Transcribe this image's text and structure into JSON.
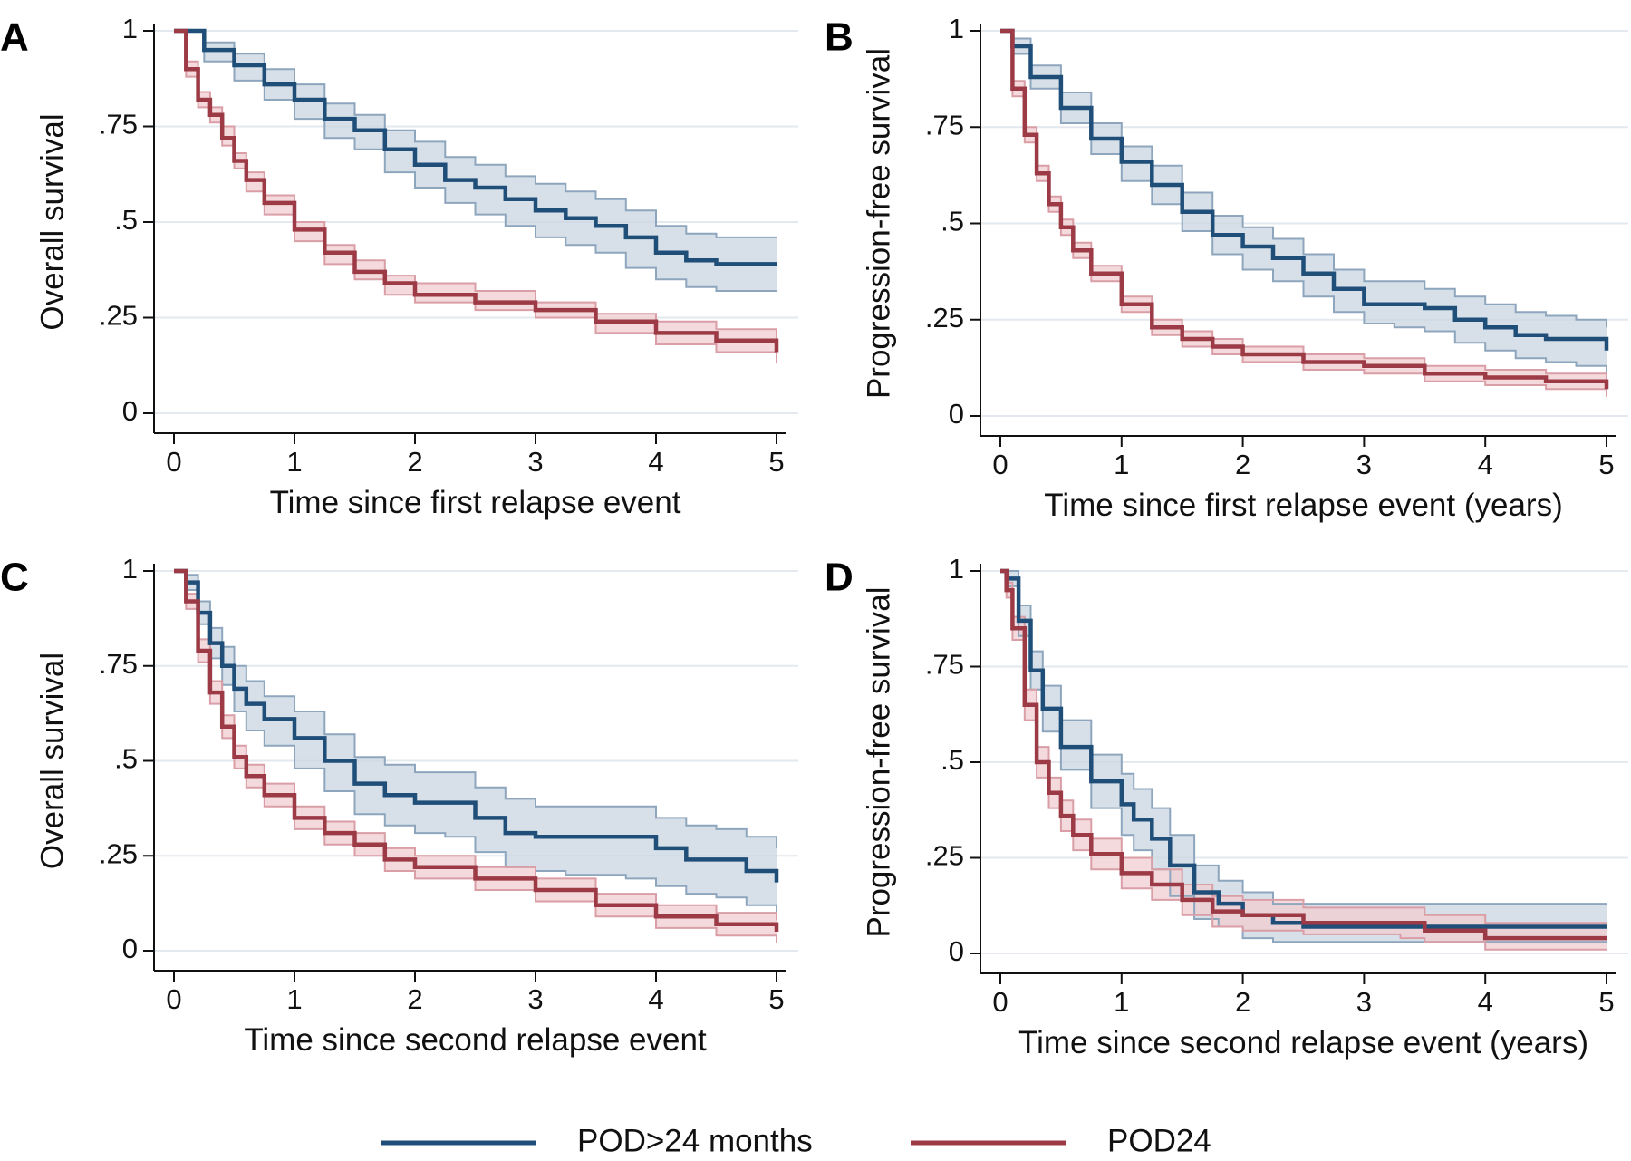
{
  "legend": {
    "placement": "bottom-center",
    "items": [
      {
        "label": "POD>24 months",
        "color": "#1f4e79"
      },
      {
        "label": "POD24",
        "color": "#9c3a46"
      }
    ]
  },
  "band_colors": {
    "POD>24 months": "#c9d5e1",
    "POD24": "#f0cdd0"
  },
  "chart_data": [
    {
      "panel": "A",
      "type": "line",
      "xlabel": "Time since first relapse event",
      "ylabel": "Overall survival",
      "xlim": [
        0,
        5
      ],
      "ylim": [
        0,
        1
      ],
      "xticks": [
        "0",
        "1",
        "2",
        "3",
        "4",
        "5"
      ],
      "yticks": [
        "0",
        ".25",
        ".5",
        ".75",
        "1"
      ],
      "grid": true,
      "series": [
        {
          "name": "POD>24 months",
          "x": [
            0,
            0.25,
            0.5,
            0.75,
            1,
            1.25,
            1.5,
            1.75,
            2,
            2.25,
            2.5,
            2.75,
            3,
            3.25,
            3.5,
            3.75,
            4,
            4.25,
            4.5,
            4.75,
            5
          ],
          "y": [
            1,
            0.95,
            0.91,
            0.86,
            0.82,
            0.77,
            0.74,
            0.69,
            0.65,
            0.61,
            0.59,
            0.56,
            0.53,
            0.51,
            0.49,
            0.46,
            0.42,
            0.4,
            0.39,
            0.39,
            0.39
          ],
          "lower": [
            1,
            0.92,
            0.87,
            0.82,
            0.77,
            0.72,
            0.69,
            0.63,
            0.59,
            0.55,
            0.52,
            0.49,
            0.46,
            0.44,
            0.42,
            0.38,
            0.35,
            0.33,
            0.32,
            0.32,
            0.32
          ],
          "upper": [
            1,
            0.97,
            0.94,
            0.9,
            0.86,
            0.81,
            0.78,
            0.74,
            0.71,
            0.67,
            0.65,
            0.62,
            0.6,
            0.58,
            0.56,
            0.53,
            0.49,
            0.47,
            0.46,
            0.46,
            0.46
          ]
        },
        {
          "name": "POD24",
          "x": [
            0,
            0.1,
            0.2,
            0.3,
            0.4,
            0.5,
            0.6,
            0.75,
            1,
            1.25,
            1.5,
            1.75,
            2,
            2.5,
            3,
            3.5,
            4,
            4.5,
            5
          ],
          "y": [
            1,
            0.9,
            0.82,
            0.78,
            0.72,
            0.66,
            0.61,
            0.55,
            0.48,
            0.42,
            0.37,
            0.34,
            0.31,
            0.29,
            0.27,
            0.24,
            0.21,
            0.19,
            0.16
          ],
          "lower": [
            1,
            0.88,
            0.8,
            0.76,
            0.7,
            0.64,
            0.58,
            0.52,
            0.45,
            0.39,
            0.35,
            0.31,
            0.29,
            0.27,
            0.25,
            0.21,
            0.18,
            0.16,
            0.13
          ],
          "upper": [
            1,
            0.92,
            0.84,
            0.8,
            0.75,
            0.68,
            0.63,
            0.57,
            0.5,
            0.44,
            0.4,
            0.36,
            0.34,
            0.32,
            0.29,
            0.26,
            0.24,
            0.22,
            0.19
          ]
        }
      ]
    },
    {
      "panel": "B",
      "type": "line",
      "xlabel": "Time since first relapse event (years)",
      "ylabel": "Progression-free survival",
      "xlim": [
        0,
        5
      ],
      "ylim": [
        0,
        1
      ],
      "xticks": [
        "0",
        "1",
        "2",
        "3",
        "4",
        "5"
      ],
      "yticks": [
        "0",
        ".25",
        ".5",
        ".75",
        "1"
      ],
      "grid": true,
      "series": [
        {
          "name": "POD>24 months",
          "x": [
            0,
            0.1,
            0.25,
            0.5,
            0.75,
            1,
            1.25,
            1.5,
            1.75,
            2,
            2.25,
            2.5,
            2.75,
            3,
            3.25,
            3.5,
            3.75,
            4,
            4.25,
            4.5,
            4.75,
            5
          ],
          "y": [
            1,
            0.96,
            0.88,
            0.8,
            0.72,
            0.66,
            0.6,
            0.53,
            0.47,
            0.44,
            0.41,
            0.37,
            0.33,
            0.29,
            0.29,
            0.28,
            0.25,
            0.23,
            0.21,
            0.2,
            0.2,
            0.17
          ],
          "lower": [
            1,
            0.94,
            0.85,
            0.76,
            0.68,
            0.61,
            0.55,
            0.48,
            0.42,
            0.38,
            0.35,
            0.31,
            0.27,
            0.24,
            0.23,
            0.22,
            0.19,
            0.17,
            0.15,
            0.14,
            0.13,
            0.1
          ],
          "upper": [
            1,
            0.98,
            0.91,
            0.84,
            0.76,
            0.7,
            0.65,
            0.58,
            0.52,
            0.49,
            0.46,
            0.42,
            0.38,
            0.35,
            0.35,
            0.33,
            0.31,
            0.29,
            0.27,
            0.26,
            0.25,
            0.23
          ]
        },
        {
          "name": "POD24",
          "x": [
            0,
            0.1,
            0.2,
            0.3,
            0.4,
            0.5,
            0.6,
            0.75,
            1,
            1.25,
            1.5,
            1.75,
            2,
            2.5,
            3,
            3.5,
            4,
            4.5,
            5
          ],
          "y": [
            1,
            0.85,
            0.73,
            0.63,
            0.55,
            0.49,
            0.43,
            0.37,
            0.29,
            0.23,
            0.2,
            0.18,
            0.16,
            0.14,
            0.13,
            0.11,
            0.1,
            0.09,
            0.07
          ],
          "lower": [
            1,
            0.83,
            0.71,
            0.61,
            0.53,
            0.47,
            0.41,
            0.35,
            0.27,
            0.21,
            0.18,
            0.16,
            0.14,
            0.12,
            0.11,
            0.09,
            0.08,
            0.07,
            0.05
          ],
          "upper": [
            1,
            0.87,
            0.75,
            0.65,
            0.57,
            0.51,
            0.45,
            0.39,
            0.31,
            0.25,
            0.22,
            0.2,
            0.18,
            0.16,
            0.15,
            0.13,
            0.12,
            0.11,
            0.09
          ]
        }
      ]
    },
    {
      "panel": "C",
      "type": "line",
      "xlabel": "Time since second relapse event",
      "ylabel": "Overall survival",
      "xlim": [
        0,
        5
      ],
      "ylim": [
        0,
        1
      ],
      "xticks": [
        "0",
        "1",
        "2",
        "3",
        "4",
        "5"
      ],
      "yticks": [
        "0",
        ".25",
        ".5",
        ".75",
        "1"
      ],
      "grid": true,
      "series": [
        {
          "name": "POD>24 months",
          "x": [
            0,
            0.1,
            0.2,
            0.3,
            0.4,
            0.5,
            0.6,
            0.75,
            1,
            1.25,
            1.5,
            1.75,
            2,
            2.25,
            2.5,
            2.75,
            3,
            3.25,
            3.5,
            3.75,
            4,
            4.25,
            4.5,
            4.75,
            5
          ],
          "y": [
            1,
            0.97,
            0.89,
            0.81,
            0.75,
            0.69,
            0.65,
            0.61,
            0.56,
            0.5,
            0.44,
            0.41,
            0.39,
            0.39,
            0.35,
            0.31,
            0.3,
            0.3,
            0.3,
            0.3,
            0.27,
            0.24,
            0.24,
            0.21,
            0.18
          ],
          "lower": [
            1,
            0.95,
            0.86,
            0.77,
            0.7,
            0.63,
            0.58,
            0.54,
            0.48,
            0.42,
            0.36,
            0.33,
            0.31,
            0.3,
            0.26,
            0.22,
            0.21,
            0.2,
            0.2,
            0.19,
            0.17,
            0.15,
            0.14,
            0.12,
            0.1
          ],
          "upper": [
            1,
            0.99,
            0.92,
            0.85,
            0.8,
            0.75,
            0.71,
            0.67,
            0.63,
            0.57,
            0.51,
            0.49,
            0.47,
            0.47,
            0.43,
            0.4,
            0.38,
            0.38,
            0.38,
            0.38,
            0.35,
            0.33,
            0.32,
            0.3,
            0.27
          ]
        },
        {
          "name": "POD24",
          "x": [
            0,
            0.1,
            0.2,
            0.3,
            0.4,
            0.5,
            0.6,
            0.75,
            1,
            1.25,
            1.5,
            1.75,
            2,
            2.5,
            3,
            3.5,
            4,
            4.5,
            5
          ],
          "y": [
            1,
            0.92,
            0.79,
            0.68,
            0.59,
            0.51,
            0.46,
            0.41,
            0.35,
            0.31,
            0.28,
            0.24,
            0.22,
            0.19,
            0.16,
            0.12,
            0.09,
            0.07,
            0.05
          ],
          "lower": [
            1,
            0.9,
            0.76,
            0.65,
            0.56,
            0.48,
            0.43,
            0.38,
            0.32,
            0.28,
            0.25,
            0.21,
            0.19,
            0.16,
            0.13,
            0.09,
            0.06,
            0.04,
            0.02
          ],
          "upper": [
            1,
            0.94,
            0.82,
            0.71,
            0.62,
            0.54,
            0.49,
            0.44,
            0.38,
            0.34,
            0.31,
            0.27,
            0.25,
            0.22,
            0.19,
            0.15,
            0.12,
            0.1,
            0.08
          ]
        }
      ]
    },
    {
      "panel": "D",
      "type": "line",
      "xlabel": "Time since second relapse event (years)",
      "ylabel": "Progression-free survival",
      "xlim": [
        0,
        5
      ],
      "ylim": [
        0,
        1
      ],
      "xticks": [
        "0",
        "1",
        "2",
        "3",
        "4",
        "5"
      ],
      "yticks": [
        "0",
        ".25",
        ".5",
        ".75",
        "1"
      ],
      "grid": true,
      "series": [
        {
          "name": "POD>24 months",
          "x": [
            0,
            0.05,
            0.15,
            0.25,
            0.35,
            0.5,
            0.75,
            1,
            1.1,
            1.25,
            1.4,
            1.6,
            1.8,
            2,
            2.25,
            2.5,
            3,
            3.5,
            4,
            4.5,
            5
          ],
          "y": [
            1,
            0.98,
            0.87,
            0.74,
            0.64,
            0.54,
            0.45,
            0.39,
            0.35,
            0.3,
            0.23,
            0.16,
            0.13,
            0.1,
            0.08,
            0.07,
            0.07,
            0.07,
            0.07,
            0.07,
            0.07
          ],
          "lower": [
            1,
            0.96,
            0.83,
            0.69,
            0.58,
            0.48,
            0.38,
            0.31,
            0.27,
            0.22,
            0.15,
            0.09,
            0.07,
            0.04,
            0.03,
            0.03,
            0.03,
            0.03,
            0.03,
            0.03,
            0.03
          ],
          "upper": [
            1,
            1,
            0.91,
            0.79,
            0.7,
            0.61,
            0.52,
            0.47,
            0.43,
            0.38,
            0.31,
            0.23,
            0.19,
            0.16,
            0.13,
            0.13,
            0.13,
            0.13,
            0.13,
            0.13,
            0.13
          ]
        },
        {
          "name": "POD24",
          "x": [
            0,
            0.05,
            0.1,
            0.2,
            0.3,
            0.4,
            0.5,
            0.6,
            0.75,
            1,
            1.25,
            1.5,
            1.75,
            2,
            2.5,
            3,
            3.3,
            3.5,
            4,
            4.5,
            5
          ],
          "y": [
            1,
            0.95,
            0.85,
            0.65,
            0.5,
            0.42,
            0.36,
            0.31,
            0.26,
            0.21,
            0.18,
            0.14,
            0.11,
            0.1,
            0.08,
            0.08,
            0.08,
            0.06,
            0.04,
            0.04,
            0.04
          ],
          "lower": [
            1,
            0.93,
            0.82,
            0.61,
            0.46,
            0.38,
            0.32,
            0.27,
            0.22,
            0.17,
            0.14,
            0.1,
            0.07,
            0.06,
            0.05,
            0.05,
            0.04,
            0.03,
            0.01,
            0.01,
            0.01
          ],
          "upper": [
            1,
            0.97,
            0.88,
            0.69,
            0.54,
            0.46,
            0.4,
            0.35,
            0.3,
            0.25,
            0.22,
            0.18,
            0.15,
            0.14,
            0.12,
            0.12,
            0.12,
            0.1,
            0.08,
            0.08,
            0.08
          ]
        }
      ]
    }
  ]
}
